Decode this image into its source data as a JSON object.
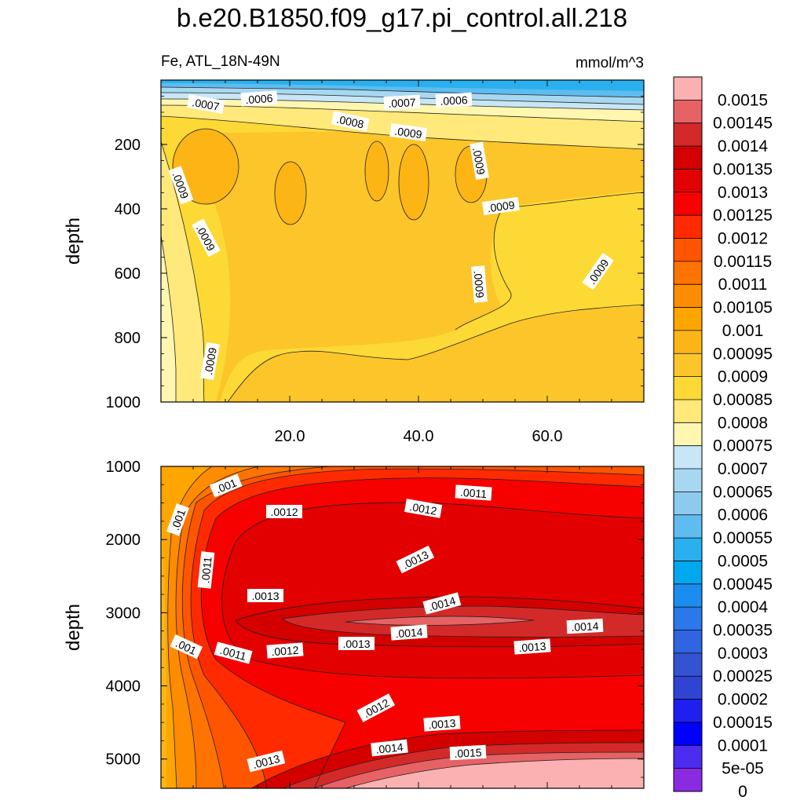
{
  "title": "b.e20.B1850.f09_g17.pi_control.all.218",
  "colorbar": {
    "labels": [
      "0.0015",
      "0.00145",
      "0.0014",
      "0.00135",
      "0.0013",
      "0.00125",
      "0.0012",
      "0.00115",
      "0.0011",
      "0.00105",
      "0.001",
      "0.00095",
      "0.0009",
      "0.00085",
      "0.0008",
      "0.00075",
      "0.0007",
      "0.00065",
      "0.0006",
      "0.00055",
      "0.0005",
      "0.00045",
      "0.0004",
      "0.00035",
      "0.0003",
      "0.00025",
      "0.0002",
      "0.00015",
      "0.0001",
      "5e-05",
      "0"
    ],
    "colors": [
      "#fbb1b1",
      "#e66265",
      "#d42929",
      "#d40000",
      "#e30000",
      "#f70000",
      "#ff2a00",
      "#ff5500",
      "#ff7300",
      "#ff8c00",
      "#ffa500",
      "#fdb515",
      "#fcc52a",
      "#fdd935",
      "#fee97a",
      "#fff6b0",
      "#c7e6f6",
      "#a8d8f0",
      "#8dcbee",
      "#5fbcef",
      "#2ab0ef",
      "#00a8f0",
      "#1c8df0",
      "#2a78ea",
      "#3064e0",
      "#3453d2",
      "#3044d4",
      "#1f20f0",
      "#0000ff",
      "#4b2cf0",
      "#8a2be2"
    ]
  },
  "chart_data": [
    {
      "type": "contour",
      "panel": "upper",
      "variable_label": "Fe, ATL_18N-49N",
      "units_label": "mmol/m^3",
      "ylabel": "depth",
      "y_reversed": true,
      "ylim": [
        0,
        1000
      ],
      "xlim": [
        0,
        75
      ],
      "y_ticks": [
        "200",
        "400",
        "600",
        "800",
        "1000"
      ],
      "x_ticks": [
        "20.0",
        "40.0",
        "60.0"
      ],
      "contour_labels": [
        ".0007",
        ".0006",
        ".0007",
        ".0006",
        ".0008",
        ".0009",
        ".0009",
        ".0009",
        ".0009",
        ".0009",
        ".0009",
        ".0009",
        ".0009"
      ]
    },
    {
      "type": "contour",
      "panel": "lower",
      "ylabel": "depth",
      "y_reversed": true,
      "ylim": [
        1000,
        5400
      ],
      "xlim": [
        0,
        75
      ],
      "y_ticks": [
        "1000",
        "2000",
        "3000",
        "4000",
        "5000"
      ],
      "x_ticks": [],
      "contour_labels": [
        ".001",
        ".001",
        ".0012",
        ".0012",
        ".0011",
        ".0011",
        ".0013",
        ".0013",
        ".0014",
        ".0014",
        ".0014",
        ".001",
        ".0011",
        ".0012",
        ".0013",
        ".0013",
        ".0012",
        ".0013",
        ".0014",
        ".0015",
        ".0013"
      ]
    }
  ]
}
